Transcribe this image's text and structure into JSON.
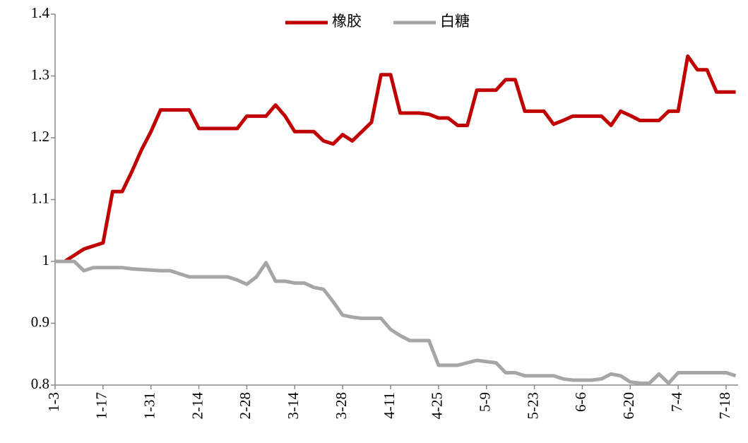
{
  "chart_data": {
    "type": "line",
    "categories": [
      "1-3",
      null,
      null,
      null,
      null,
      "1-17",
      null,
      null,
      null,
      null,
      "1-31",
      null,
      null,
      null,
      null,
      "2-14",
      null,
      null,
      null,
      null,
      "2-28",
      null,
      null,
      null,
      null,
      "3-14",
      null,
      null,
      null,
      null,
      "3-28",
      null,
      null,
      null,
      null,
      "4-11",
      null,
      null,
      null,
      null,
      "4-25",
      null,
      null,
      null,
      null,
      "5-9",
      null,
      null,
      null,
      null,
      "5-23",
      null,
      null,
      null,
      null,
      "6-6",
      null,
      null,
      null,
      null,
      "6-20",
      null,
      null,
      null,
      null,
      "7-4",
      null,
      null,
      null,
      null,
      "7-18",
      null
    ],
    "series": [
      {
        "name": "橡胶",
        "color": "#c00000",
        "values": [
          1.0,
          1.0,
          1.01,
          1.02,
          1.025,
          1.03,
          1.113,
          1.113,
          1.145,
          1.18,
          1.21,
          1.245,
          1.245,
          1.245,
          1.245,
          1.215,
          1.215,
          1.215,
          1.215,
          1.215,
          1.235,
          1.235,
          1.235,
          1.253,
          1.235,
          1.21,
          1.21,
          1.21,
          1.195,
          1.19,
          1.205,
          1.195,
          1.21,
          1.225,
          1.302,
          1.302,
          1.24,
          1.24,
          1.24,
          1.238,
          1.232,
          1.232,
          1.22,
          1.22,
          1.277,
          1.277,
          1.277,
          1.294,
          1.294,
          1.243,
          1.243,
          1.243,
          1.222,
          1.228,
          1.235,
          1.235,
          1.235,
          1.235,
          1.22,
          1.243,
          1.236,
          1.228,
          1.228,
          1.228,
          1.243,
          1.243,
          1.332,
          1.31,
          1.31,
          1.274,
          1.274,
          1.274
        ]
      },
      {
        "name": "白糖",
        "color": "#a6a6a6",
        "values": [
          1.0,
          1.0,
          1.0,
          0.985,
          0.99,
          0.99,
          0.99,
          0.99,
          0.988,
          0.987,
          0.986,
          0.985,
          0.985,
          0.98,
          0.975,
          0.975,
          0.975,
          0.975,
          0.975,
          0.97,
          0.963,
          0.975,
          0.998,
          0.968,
          0.968,
          0.965,
          0.965,
          0.958,
          0.955,
          0.935,
          0.913,
          0.91,
          0.908,
          0.908,
          0.908,
          0.89,
          0.88,
          0.872,
          0.872,
          0.872,
          0.832,
          0.832,
          0.832,
          0.836,
          0.84,
          0.838,
          0.836,
          0.82,
          0.82,
          0.815,
          0.815,
          0.815,
          0.815,
          0.81,
          0.808,
          0.808,
          0.808,
          0.81,
          0.818,
          0.815,
          0.805,
          0.803,
          0.803,
          0.818,
          0.803,
          0.82,
          0.82,
          0.82,
          0.82,
          0.82,
          0.82,
          0.815
        ]
      }
    ],
    "ylim": [
      0.8,
      1.4
    ],
    "yticks": [
      0.8,
      0.9,
      1,
      1.1,
      1.2,
      1.3,
      1.4
    ],
    "grid": false,
    "legend": "top"
  }
}
